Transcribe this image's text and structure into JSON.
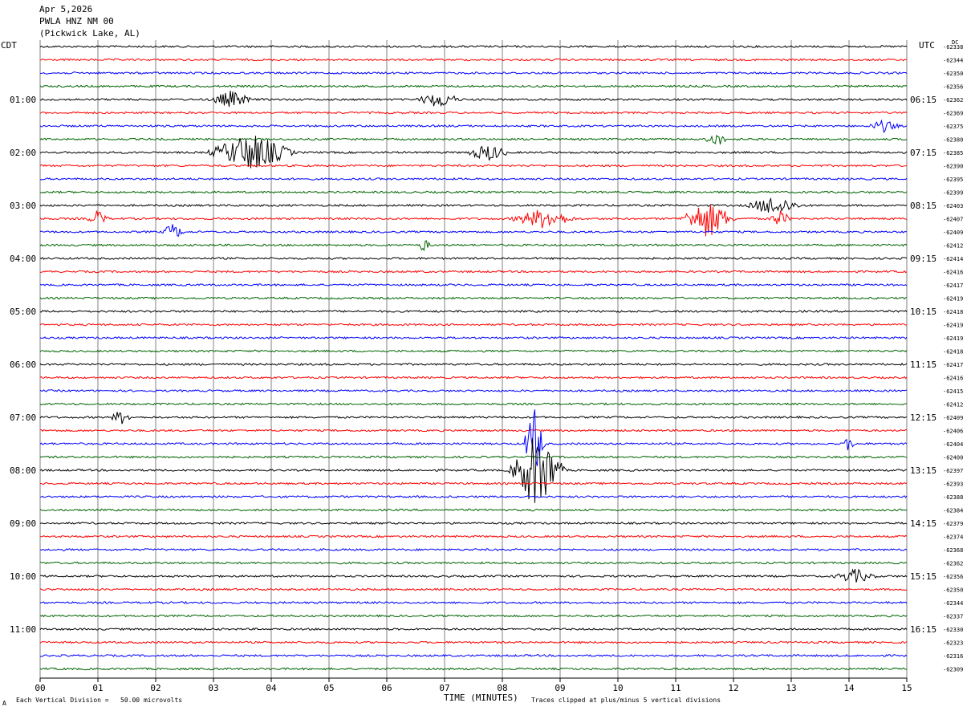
{
  "header": {
    "date": "Apr 5,2026",
    "station": "PWLA HNZ NM 00",
    "location": "(Pickwick Lake, AL)"
  },
  "left_timezone": "CDT",
  "right_timezone": "UTC",
  "dc_label": "DC",
  "footer": {
    "scale_text": "Each Vertical Division =   50.00 microvolts",
    "clip_text": "Traces clipped at plus/minus 5 vertical divisions",
    "corner_mark": "A"
  },
  "colors": {
    "trace_cycle": [
      "#000000",
      "#ff0000",
      "#0000ff",
      "#006400"
    ],
    "grid": "#808080"
  },
  "chart_data": {
    "type": "line",
    "title": "",
    "xlabel": "TIME (MINUTES)",
    "xticks": [
      "00",
      "01",
      "02",
      "03",
      "04",
      "05",
      "06",
      "07",
      "08",
      "09",
      "10",
      "11",
      "12",
      "13",
      "14",
      "15"
    ],
    "xlim": [
      0,
      15
    ],
    "rows": 48,
    "minutes_per_row": 15,
    "left_hour_labels": [
      "01:00",
      "02:00",
      "03:00",
      "04:00",
      "05:00",
      "06:00",
      "07:00",
      "08:00",
      "09:00",
      "10:00",
      "11:00"
    ],
    "right_hour_labels": [
      "06:15",
      "07:15",
      "08:15",
      "09:15",
      "10:15",
      "11:15",
      "12:15",
      "13:15",
      "14:15",
      "15:15",
      "16:15"
    ],
    "hour_label_rows": [
      4,
      8,
      12,
      16,
      20,
      24,
      28,
      32,
      36,
      40,
      44
    ],
    "dc_offsets": [
      "-62338",
      "-62344",
      "-62350",
      "-62356",
      "-62362",
      "-62369",
      "-62375",
      "-62380",
      "-62385",
      "-62390",
      "-62395",
      "-62399",
      "-62403",
      "-62407",
      "-62409",
      "-62412",
      "-62414",
      "-62416",
      "-62417",
      "-62419",
      "-62418",
      "-62419",
      "-62419",
      "-62418",
      "-62417",
      "-62416",
      "-62415",
      "-62412",
      "-62409",
      "-62406",
      "-62404",
      "-62400",
      "-62397",
      "-62393",
      "-62388",
      "-62384",
      "-62379",
      "-62374",
      "-62368",
      "-62362",
      "-62356",
      "-62350",
      "-62344",
      "-62337",
      "-62330",
      "-62323",
      "-62316",
      "-62309"
    ],
    "events": [
      {
        "row": 4,
        "minute": 3.3,
        "amplitude": 0.6,
        "duration": 0.4
      },
      {
        "row": 4,
        "minute": 6.9,
        "amplitude": 0.6,
        "duration": 0.4
      },
      {
        "row": 8,
        "minute": 3.65,
        "amplitude": 1.4,
        "duration": 0.8
      },
      {
        "row": 8,
        "minute": 7.75,
        "amplitude": 0.6,
        "duration": 0.4
      },
      {
        "row": 12,
        "minute": 12.7,
        "amplitude": 0.7,
        "duration": 0.5
      },
      {
        "row": 13,
        "minute": 8.7,
        "amplitude": 0.7,
        "duration": 0.6
      },
      {
        "row": 13,
        "minute": 11.55,
        "amplitude": 1.4,
        "duration": 0.5
      },
      {
        "row": 13,
        "minute": 12.8,
        "amplitude": 0.6,
        "duration": 0.2
      },
      {
        "row": 13,
        "minute": 1.0,
        "amplitude": 0.6,
        "duration": 0.2
      },
      {
        "row": 14,
        "minute": 2.3,
        "amplitude": 0.6,
        "duration": 0.2
      },
      {
        "row": 15,
        "minute": 6.65,
        "amplitude": 0.6,
        "duration": 0.1
      },
      {
        "row": 28,
        "minute": 1.4,
        "amplitude": 0.5,
        "duration": 0.2
      },
      {
        "row": 30,
        "minute": 8.55,
        "amplitude": 2.8,
        "duration": 0.2
      },
      {
        "row": 32,
        "minute": 8.6,
        "amplitude": 3.0,
        "duration": 0.5
      },
      {
        "row": 30,
        "minute": 14.0,
        "amplitude": 0.6,
        "duration": 0.1
      },
      {
        "row": 40,
        "minute": 14.1,
        "amplitude": 0.5,
        "duration": 0.4
      },
      {
        "row": 6,
        "minute": 14.6,
        "amplitude": 0.4,
        "duration": 0.3
      },
      {
        "row": 7,
        "minute": 11.7,
        "amplitude": 0.5,
        "duration": 0.2
      }
    ]
  }
}
